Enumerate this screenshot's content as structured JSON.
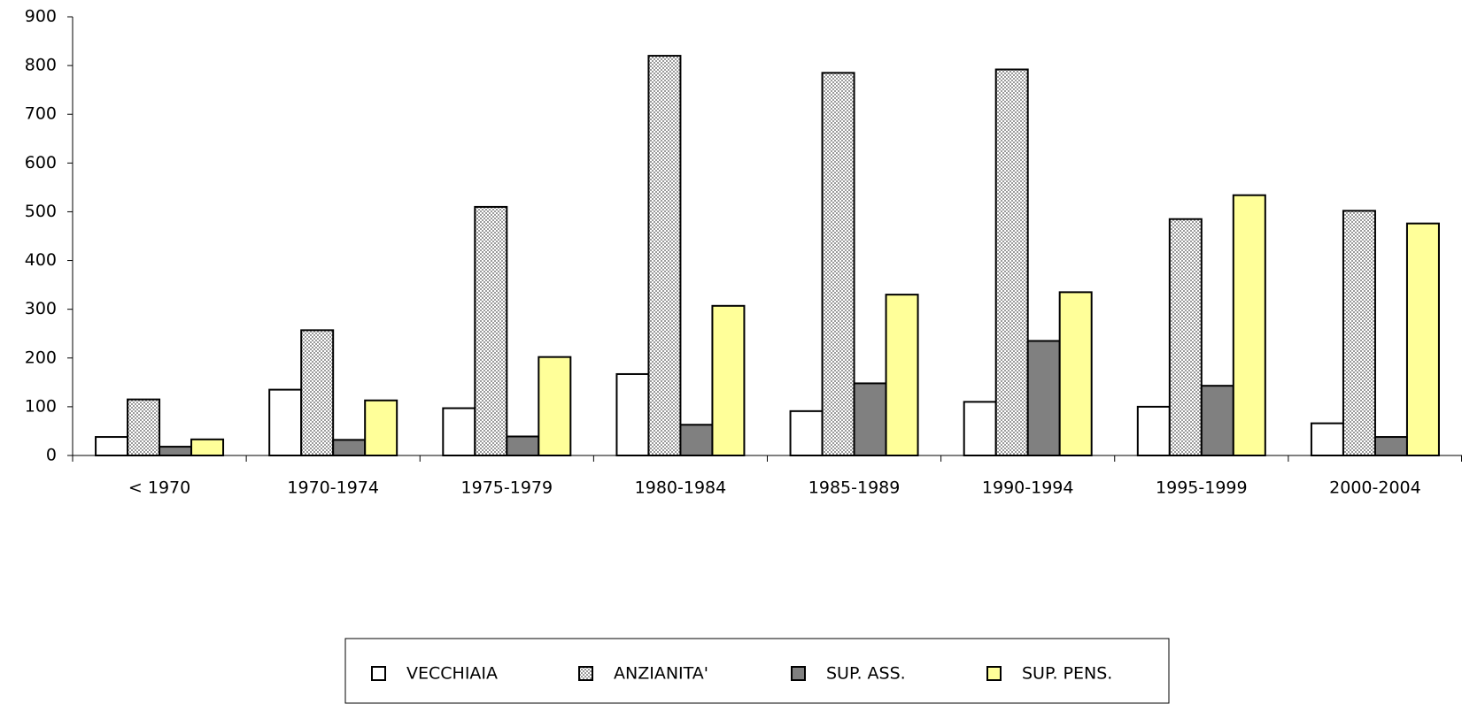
{
  "chart_data": {
    "type": "bar",
    "categories": [
      "< 1970",
      "1970-1974",
      "1975-1979",
      "1980-1984",
      "1985-1989",
      "1990-1994",
      "1995-1999",
      "2000-2004"
    ],
    "series": [
      {
        "name": "VECCHIAIA",
        "color": "#ffffff",
        "values": [
          38,
          135,
          97,
          167,
          91,
          110,
          100,
          66
        ]
      },
      {
        "name": "ANZIANITA'",
        "color": "#c0c0c0",
        "values": [
          115,
          257,
          510,
          820,
          785,
          792,
          485,
          502
        ]
      },
      {
        "name": "SUP. ASS.",
        "color": "#808080",
        "values": [
          18,
          32,
          39,
          63,
          148,
          235,
          143,
          38
        ]
      },
      {
        "name": "SUP. PENS.",
        "color": "#ffff99",
        "values": [
          33,
          113,
          202,
          307,
          330,
          335,
          534,
          476
        ]
      }
    ],
    "ylim": [
      0,
      900
    ],
    "yticks": [
      0,
      100,
      200,
      300,
      400,
      500,
      600,
      700,
      800,
      900
    ],
    "grid": false,
    "legend": "bottom"
  }
}
